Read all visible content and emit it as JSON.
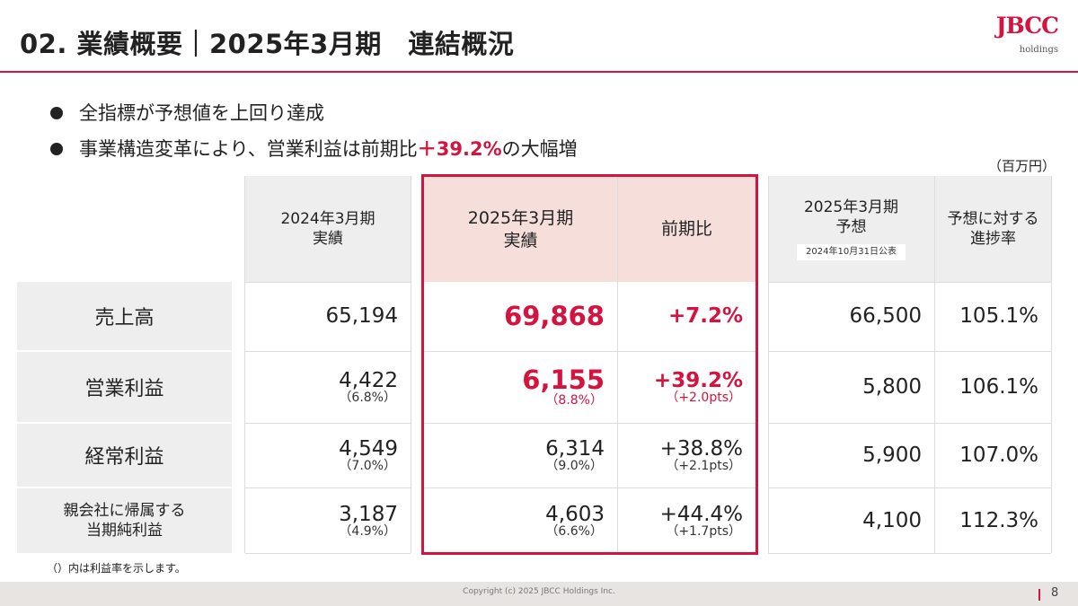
{
  "title": "02. 業績概要｜2025年3月期　連結概況",
  "logo": {
    "main": "JBCC",
    "sub": "holdings"
  },
  "bullets": [
    {
      "text": "全指標が予想値を上回り達成",
      "highlight": "",
      "after": ""
    },
    {
      "text": "事業構造変革により、営業利益は前期比",
      "highlight": "＋39.2%",
      "after": "の大幅増"
    }
  ],
  "unit": "（百万円）",
  "table": {
    "headers": {
      "prev_actual": [
        "2024年3月期",
        "実績"
      ],
      "curr_actual": [
        "2025年3月期",
        "実績"
      ],
      "yoy": "前期比",
      "forecast": [
        "2025年3月期",
        "予想"
      ],
      "forecast_note": "2024年10月31日公表",
      "progress": [
        "予想に対する",
        "進捗率"
      ]
    },
    "rows": [
      {
        "label": [
          "売上高"
        ],
        "prev": "65,194",
        "prev_rate": "",
        "curr": "69,868",
        "curr_rate": "",
        "yoy": "+7.2%",
        "yoy_pts": "",
        "forecast": "66,500",
        "progress": "105.1%"
      },
      {
        "label": [
          "営業利益"
        ],
        "prev": "4,422",
        "prev_rate": "（6.8%）",
        "curr": "6,155",
        "curr_rate": "（8.8%）",
        "yoy": "+39.2%",
        "yoy_pts": "（+2.0pts）",
        "forecast": "5,800",
        "progress": "106.1%"
      },
      {
        "label": [
          "経常利益"
        ],
        "prev": "4,549",
        "prev_rate": "（7.0%）",
        "curr": "6,314",
        "curr_rate": "（9.0%）",
        "yoy": "+38.8%",
        "yoy_pts": "（+2.1pts）",
        "forecast": "5,900",
        "progress": "107.0%"
      },
      {
        "label": [
          "親会社に帰属する",
          "当期純利益"
        ],
        "prev": "3,187",
        "prev_rate": "（4.9%）",
        "curr": "4,603",
        "curr_rate": "（6.6%）",
        "yoy": "+44.4%",
        "yoy_pts": "（+1.7pts）",
        "forecast": "4,100",
        "progress": "112.3%"
      }
    ]
  },
  "note": "（）内は利益率を示します。",
  "footer": {
    "copyright": "Copyright (c) 2025 JBCC Holdings Inc.",
    "page": "8"
  },
  "colors": {
    "accent": "#d4133f",
    "header_gray": "#efeeee",
    "header_pink": "#f6dfdb",
    "footer": "#e8e4e2"
  }
}
